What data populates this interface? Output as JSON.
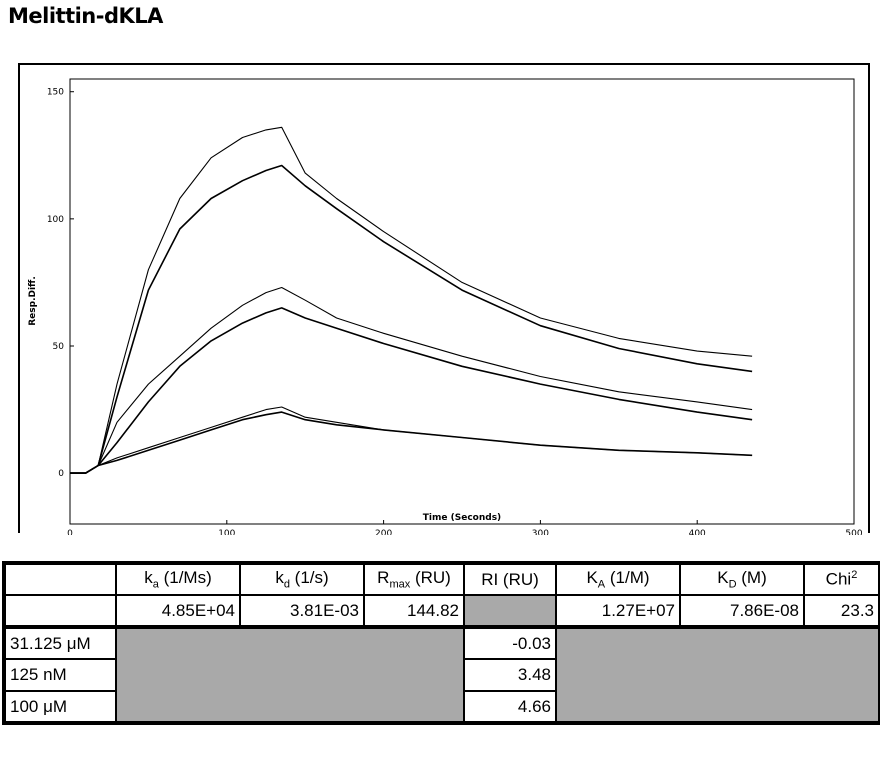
{
  "title": "Melittin-dKLA",
  "chart_data": {
    "type": "line",
    "title": "",
    "xlabel": "Time (Seconds)",
    "ylabel": "Resp.Diff.",
    "xlim": [
      0,
      500
    ],
    "ylim": [
      -20,
      155
    ],
    "xticks": [
      0,
      100,
      200,
      300,
      400,
      500
    ],
    "yticks": [
      0,
      50,
      100,
      150
    ],
    "xtick_labels": [
      "0",
      "100",
      "200",
      "300",
      "400",
      "500"
    ],
    "ytick_labels": [
      "0",
      "50",
      "100",
      "150"
    ],
    "grid": false,
    "legend": "none",
    "series": [
      {
        "style": "measured",
        "x": [
          0,
          10,
          18,
          30,
          50,
          70,
          90,
          110,
          125,
          135,
          150,
          170,
          200,
          250,
          300,
          350,
          400,
          435
        ],
        "y": [
          0,
          0,
          3,
          35,
          80,
          108,
          124,
          132,
          135,
          136,
          118,
          108,
          95,
          75,
          61,
          53,
          48,
          46
        ]
      },
      {
        "style": "fit",
        "x": [
          0,
          10,
          18,
          30,
          50,
          70,
          90,
          110,
          125,
          135,
          150,
          170,
          200,
          250,
          300,
          350,
          400,
          435
        ],
        "y": [
          0,
          0,
          3,
          30,
          72,
          96,
          108,
          115,
          119,
          121,
          113,
          104,
          91,
          72,
          58,
          49,
          43,
          40
        ]
      },
      {
        "style": "measured",
        "x": [
          0,
          10,
          18,
          30,
          50,
          70,
          90,
          110,
          125,
          135,
          150,
          170,
          200,
          250,
          300,
          350,
          400,
          435
        ],
        "y": [
          0,
          0,
          3,
          20,
          35,
          46,
          57,
          66,
          71,
          73,
          68,
          61,
          55,
          46,
          38,
          32,
          28,
          25
        ]
      },
      {
        "style": "fit",
        "x": [
          0,
          10,
          18,
          30,
          50,
          70,
          90,
          110,
          125,
          135,
          150,
          170,
          200,
          250,
          300,
          350,
          400,
          435
        ],
        "y": [
          0,
          0,
          3,
          12,
          28,
          42,
          52,
          59,
          63,
          65,
          61,
          57,
          51,
          42,
          35,
          29,
          24,
          21
        ]
      },
      {
        "style": "measured",
        "x": [
          0,
          10,
          18,
          30,
          50,
          70,
          90,
          110,
          125,
          135,
          150,
          170,
          200,
          250,
          300,
          350,
          400,
          435
        ],
        "y": [
          0,
          0,
          3,
          6,
          10,
          14,
          18,
          22,
          25,
          26,
          22,
          20,
          17,
          14,
          11,
          9,
          8,
          7
        ]
      },
      {
        "style": "fit",
        "x": [
          0,
          10,
          18,
          30,
          50,
          70,
          90,
          110,
          125,
          135,
          150,
          170,
          200,
          250,
          300,
          350,
          400,
          435
        ],
        "y": [
          0,
          0,
          3,
          5,
          9,
          13,
          17,
          21,
          23,
          24,
          21,
          19,
          17,
          14,
          11,
          9,
          8,
          7
        ]
      }
    ],
    "line_color": "#000000"
  },
  "table": {
    "headers": [
      {
        "main": "k",
        "sub": "a",
        "tail": " (1/Ms)"
      },
      {
        "main": "k",
        "sub": "d",
        "tail": " (1/s)"
      },
      {
        "main": "R",
        "sub": "max",
        "tail": " (RU)"
      },
      {
        "main": "RI (RU)",
        "sub": "",
        "tail": ""
      },
      {
        "main": "K",
        "sub": "A",
        "tail": " (1/M)"
      },
      {
        "main": "K",
        "sub": "D",
        "tail": " (M)"
      },
      {
        "main": "Chi",
        "sup": "2",
        "tail": ""
      }
    ],
    "values": {
      "ka": "4.85E+04",
      "kd": "3.81E-03",
      "rmax": "144.82",
      "ri": "",
      "KA": "1.27E+07",
      "KD": "7.86E-08",
      "chi2": "23.3"
    },
    "rows": [
      {
        "label": "31.125 μM",
        "ri": "-0.03"
      },
      {
        "label": "125 nM",
        "ri": "3.48"
      },
      {
        "label": "100 μM",
        "ri": "4.66"
      }
    ],
    "grey_color": "#a9a9a9"
  }
}
